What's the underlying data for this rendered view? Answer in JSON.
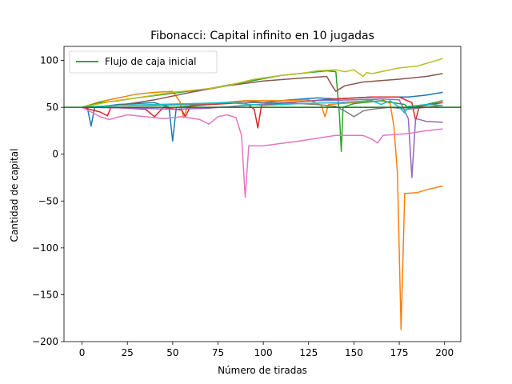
{
  "chart_data": {
    "type": "line",
    "title": "Fibonacci: Capital infinito en 10 jugadas",
    "xlabel": "Número de tiradas",
    "ylabel": "Cantidad de capital",
    "xlim": [
      -9.95,
      208.95
    ],
    "ylim": [
      -200,
      115
    ],
    "xticks": [
      0,
      25,
      50,
      75,
      100,
      125,
      150,
      175,
      200
    ],
    "yticks": [
      -200,
      -150,
      -100,
      -50,
      0,
      50,
      100
    ],
    "grid": false,
    "legend_placement": "top-left",
    "reference_line": {
      "name": "Flujo de caja inicial",
      "y": 50,
      "color": "#008000"
    },
    "series": [
      {
        "color": "#1f77b4",
        "points": [
          [
            0,
            50
          ],
          [
            3,
            49
          ],
          [
            5,
            30
          ],
          [
            7,
            50
          ],
          [
            20,
            53
          ],
          [
            40,
            55
          ],
          [
            48,
            50
          ],
          [
            50,
            14
          ],
          [
            52,
            50
          ],
          [
            70,
            53
          ],
          [
            90,
            57
          ],
          [
            100,
            55
          ],
          [
            115,
            58
          ],
          [
            130,
            60
          ],
          [
            140,
            59
          ],
          [
            160,
            61
          ],
          [
            180,
            61
          ],
          [
            190,
            63
          ],
          [
            199,
            66
          ]
        ]
      },
      {
        "color": "#ff7f0e",
        "points": [
          [
            0,
            50
          ],
          [
            10,
            56
          ],
          [
            20,
            60
          ],
          [
            30,
            64
          ],
          [
            40,
            66
          ],
          [
            50,
            67
          ],
          [
            54,
            56
          ],
          [
            56,
            39
          ],
          [
            58,
            50
          ],
          [
            70,
            54
          ],
          [
            90,
            57
          ],
          [
            110,
            57
          ],
          [
            125,
            58
          ],
          [
            132,
            52
          ],
          [
            134,
            40
          ],
          [
            136,
            53
          ],
          [
            150,
            55
          ],
          [
            160,
            58
          ],
          [
            165,
            59
          ],
          [
            170,
            54
          ],
          [
            172,
            30
          ],
          [
            174,
            -20
          ],
          [
            176,
            -187
          ],
          [
            178,
            -42
          ],
          [
            185,
            -41
          ],
          [
            190,
            -38
          ],
          [
            199,
            -34
          ]
        ]
      },
      {
        "color": "#2ca02c",
        "points": [
          [
            0,
            50
          ],
          [
            10,
            55
          ],
          [
            20,
            57
          ],
          [
            30,
            60
          ],
          [
            50,
            65
          ],
          [
            70,
            70
          ],
          [
            90,
            77
          ],
          [
            110,
            84
          ],
          [
            125,
            87
          ],
          [
            135,
            89
          ],
          [
            140,
            88
          ],
          [
            142,
            42
          ],
          [
            143,
            3
          ],
          [
            144,
            50
          ],
          [
            150,
            54
          ],
          [
            165,
            57
          ],
          [
            178,
            53
          ],
          [
            180,
            49
          ],
          [
            190,
            53
          ],
          [
            199,
            57
          ]
        ]
      },
      {
        "color": "#d62728",
        "points": [
          [
            0,
            50
          ],
          [
            10,
            45
          ],
          [
            14,
            41
          ],
          [
            16,
            50
          ],
          [
            35,
            48
          ],
          [
            40,
            40
          ],
          [
            45,
            50
          ],
          [
            55,
            47
          ],
          [
            57,
            40
          ],
          [
            60,
            52
          ],
          [
            80,
            54
          ],
          [
            90,
            55
          ],
          [
            95,
            48
          ],
          [
            97,
            28
          ],
          [
            99,
            52
          ],
          [
            120,
            56
          ],
          [
            140,
            59
          ],
          [
            160,
            61
          ],
          [
            175,
            61
          ],
          [
            182,
            55
          ],
          [
            184,
            36
          ],
          [
            186,
            51
          ],
          [
            199,
            55
          ]
        ]
      },
      {
        "color": "#9467bd",
        "points": [
          [
            0,
            50
          ],
          [
            30,
            49
          ],
          [
            50,
            48
          ],
          [
            70,
            49
          ],
          [
            90,
            52
          ],
          [
            110,
            55
          ],
          [
            130,
            57
          ],
          [
            150,
            58
          ],
          [
            165,
            59
          ],
          [
            175,
            58
          ],
          [
            180,
            38
          ],
          [
            182,
            -25
          ],
          [
            184,
            38
          ],
          [
            190,
            35
          ],
          [
            199,
            34
          ]
        ]
      },
      {
        "color": "#8c564b",
        "points": [
          [
            0,
            50
          ],
          [
            20,
            52
          ],
          [
            40,
            58
          ],
          [
            60,
            66
          ],
          [
            80,
            73
          ],
          [
            100,
            78
          ],
          [
            120,
            81
          ],
          [
            135,
            83
          ],
          [
            138,
            73
          ],
          [
            140,
            67
          ],
          [
            145,
            73
          ],
          [
            155,
            77
          ],
          [
            175,
            80
          ],
          [
            190,
            83
          ],
          [
            199,
            86
          ]
        ]
      },
      {
        "color": "#e377c2",
        "points": [
          [
            0,
            50
          ],
          [
            5,
            45
          ],
          [
            10,
            40
          ],
          [
            15,
            37
          ],
          [
            25,
            42
          ],
          [
            35,
            40
          ],
          [
            45,
            38
          ],
          [
            55,
            40
          ],
          [
            65,
            37
          ],
          [
            70,
            32
          ],
          [
            75,
            40
          ],
          [
            80,
            42
          ],
          [
            85,
            39
          ],
          [
            88,
            20
          ],
          [
            90,
            -46
          ],
          [
            92,
            9
          ],
          [
            100,
            9
          ],
          [
            120,
            14
          ],
          [
            140,
            20
          ],
          [
            155,
            20
          ],
          [
            160,
            16
          ],
          [
            163,
            12
          ],
          [
            166,
            20
          ],
          [
            180,
            22
          ],
          [
            190,
            25
          ],
          [
            199,
            27
          ]
        ]
      },
      {
        "color": "#7f7f7f",
        "points": [
          [
            0,
            50
          ],
          [
            20,
            52
          ],
          [
            40,
            52
          ],
          [
            60,
            53
          ],
          [
            80,
            55
          ],
          [
            100,
            55
          ],
          [
            120,
            54
          ],
          [
            130,
            53
          ],
          [
            140,
            51
          ],
          [
            145,
            46
          ],
          [
            150,
            40
          ],
          [
            155,
            46
          ],
          [
            160,
            48
          ],
          [
            170,
            50
          ],
          [
            180,
            48
          ],
          [
            190,
            50
          ],
          [
            199,
            52
          ]
        ]
      },
      {
        "color": "#bcbd22",
        "points": [
          [
            0,
            50
          ],
          [
            15,
            56
          ],
          [
            30,
            60
          ],
          [
            50,
            66
          ],
          [
            70,
            70
          ],
          [
            80,
            73
          ],
          [
            95,
            80
          ],
          [
            110,
            84
          ],
          [
            120,
            86
          ],
          [
            130,
            89
          ],
          [
            140,
            90
          ],
          [
            145,
            88
          ],
          [
            150,
            90
          ],
          [
            155,
            83
          ],
          [
            157,
            87
          ],
          [
            160,
            86
          ],
          [
            175,
            92
          ],
          [
            185,
            94
          ],
          [
            199,
            102
          ]
        ]
      },
      {
        "color": "#17becf",
        "points": [
          [
            0,
            50
          ],
          [
            20,
            52
          ],
          [
            40,
            53
          ],
          [
            60,
            54
          ],
          [
            80,
            55
          ],
          [
            100,
            52
          ],
          [
            120,
            54
          ],
          [
            140,
            55
          ],
          [
            150,
            56
          ],
          [
            160,
            57
          ],
          [
            165,
            53
          ],
          [
            170,
            57
          ],
          [
            175,
            50
          ],
          [
            178,
            44
          ],
          [
            180,
            51
          ],
          [
            190,
            53
          ],
          [
            199,
            52
          ]
        ]
      }
    ]
  }
}
